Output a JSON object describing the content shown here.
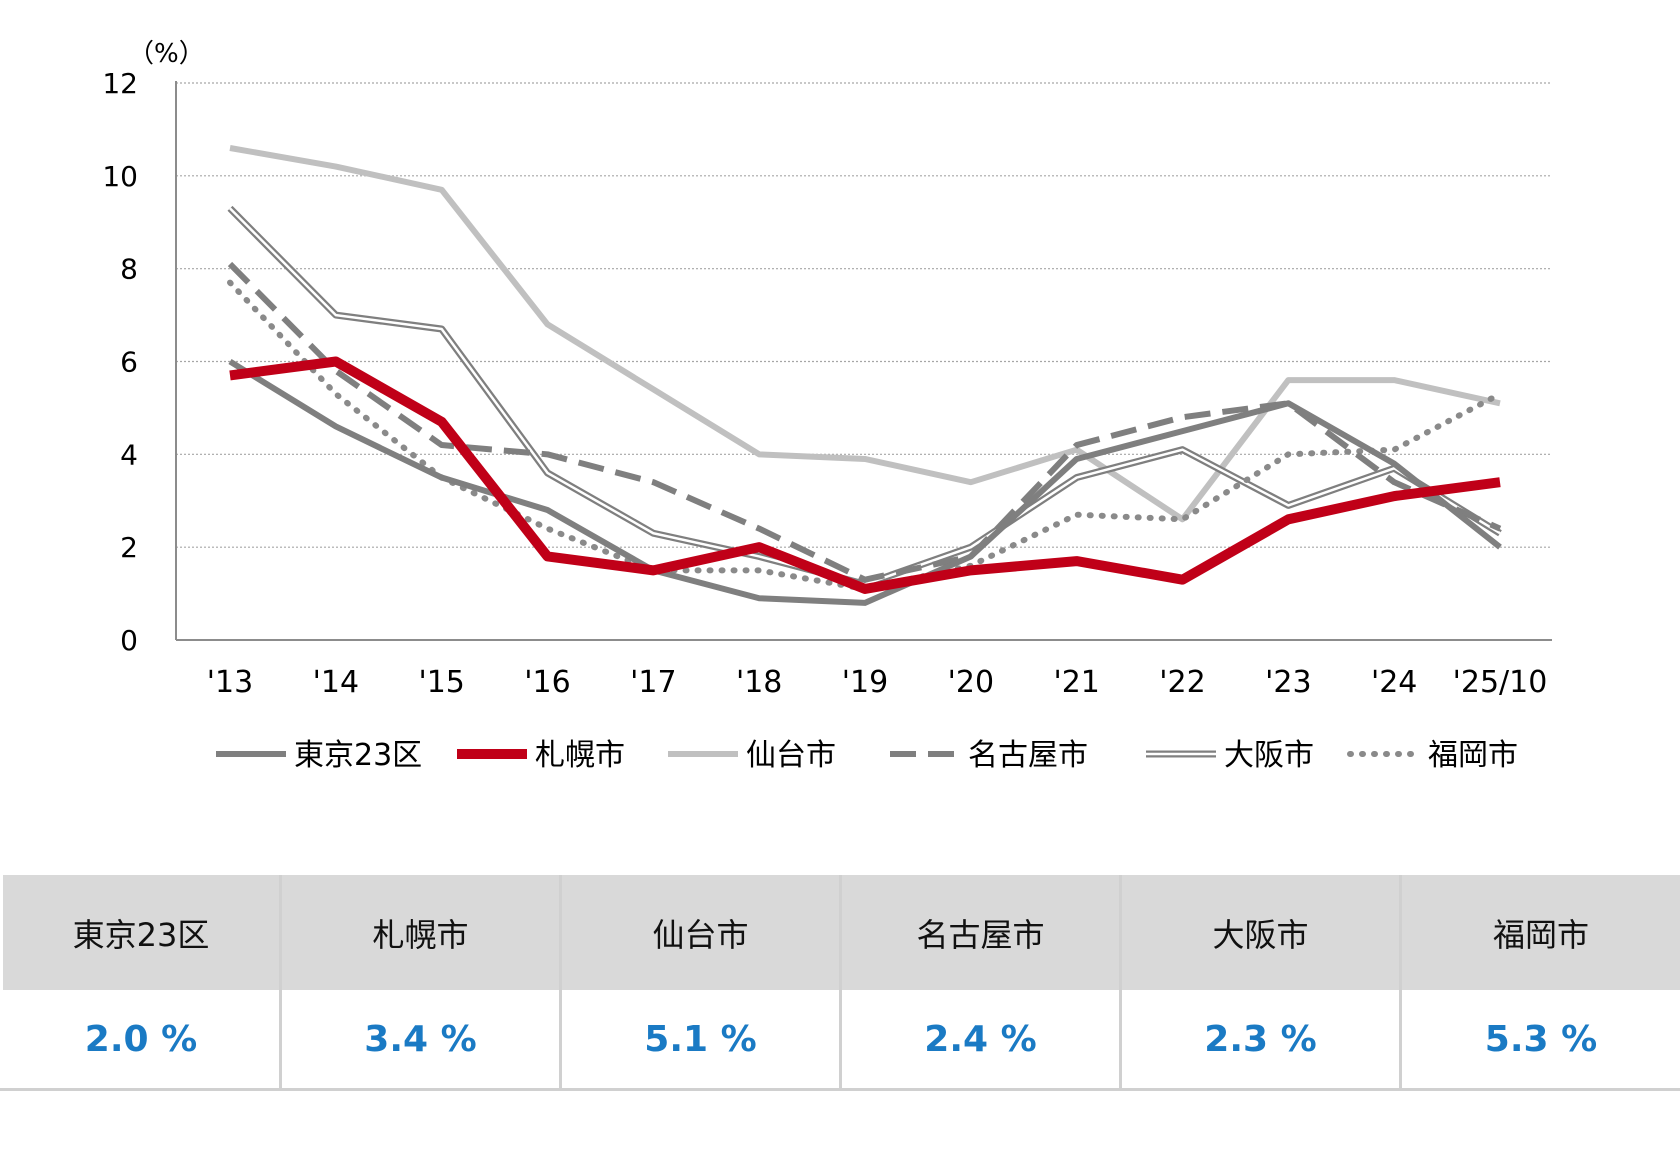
{
  "chart_data": {
    "type": "line",
    "unit_label": "（%）",
    "categories": [
      "'13",
      "'14",
      "'15",
      "'16",
      "'17",
      "'18",
      "'19",
      "'20",
      "'21",
      "'22",
      "'23",
      "'24",
      "'25/10"
    ],
    "ylim": [
      0,
      12
    ],
    "yticks": [
      0,
      2,
      4,
      6,
      8,
      10,
      12
    ],
    "grid": true,
    "legend_position": "bottom",
    "series": [
      {
        "name": "東京23区",
        "values": [
          6.0,
          4.6,
          3.5,
          2.8,
          1.5,
          0.9,
          0.8,
          1.8,
          3.9,
          4.5,
          5.1,
          3.8,
          2.0
        ],
        "color": "#7f7f7f",
        "style": "solid-thick"
      },
      {
        "name": "札幌市",
        "values": [
          5.7,
          6.0,
          4.7,
          1.8,
          1.5,
          2.0,
          1.1,
          1.5,
          1.7,
          1.3,
          2.6,
          3.1,
          3.4
        ],
        "color": "#c00018",
        "style": "solid-bold"
      },
      {
        "name": "仙台市",
        "values": [
          10.6,
          10.2,
          9.7,
          6.8,
          5.4,
          4.0,
          3.9,
          3.4,
          4.1,
          2.6,
          5.6,
          5.6,
          5.1
        ],
        "color": "#c0c0c0",
        "style": "solid-thick"
      },
      {
        "name": "名古屋市",
        "values": [
          8.1,
          5.8,
          4.2,
          4.0,
          3.4,
          2.4,
          1.3,
          1.8,
          4.2,
          4.8,
          5.1,
          3.4,
          2.4
        ],
        "color": "#7f7f7f",
        "style": "dashed"
      },
      {
        "name": "大阪市",
        "values": [
          9.3,
          7.0,
          6.7,
          3.6,
          2.3,
          1.8,
          1.2,
          2.0,
          3.5,
          4.1,
          2.9,
          3.7,
          2.3
        ],
        "color": "#7f7f7f",
        "style": "double"
      },
      {
        "name": "福岡市",
        "values": [
          7.7,
          5.3,
          3.5,
          2.4,
          1.5,
          1.5,
          1.1,
          1.6,
          2.7,
          2.6,
          4.0,
          4.1,
          5.3
        ],
        "color": "#8a8a8a",
        "style": "dotted"
      }
    ]
  },
  "table": {
    "headers": [
      "東京23区",
      "札幌市",
      "仙台市",
      "名古屋市",
      "大阪市",
      "福岡市"
    ],
    "values": [
      "2.0 %",
      "3.4 %",
      "5.1 %",
      "2.4 %",
      "2.3 %",
      "5.3 %"
    ]
  }
}
